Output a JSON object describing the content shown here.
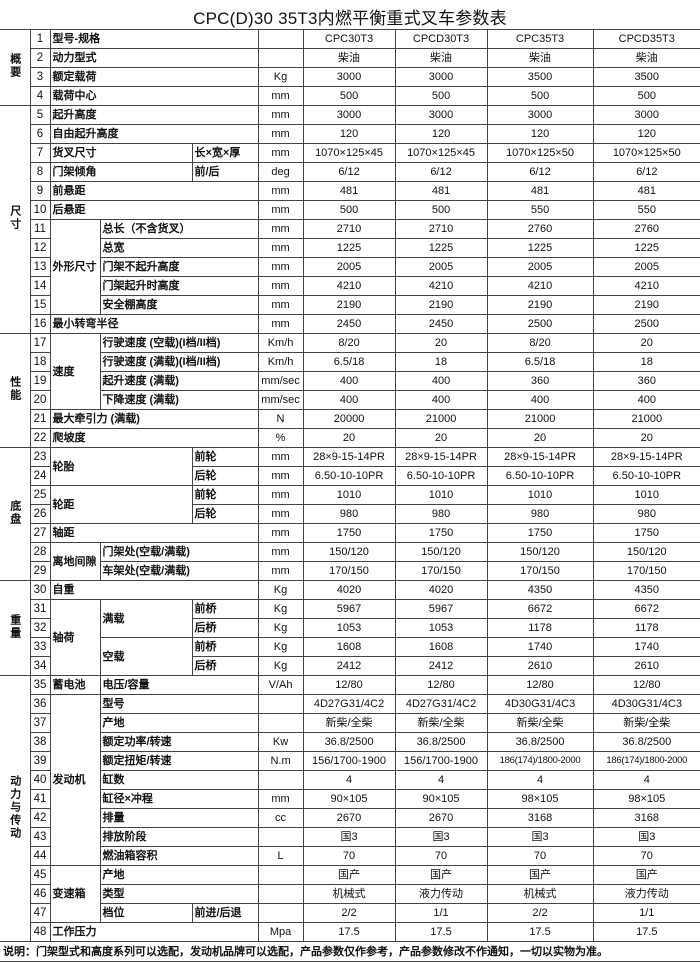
{
  "title": "CPC(D)30  35T3内燃平衡重式叉车参数表",
  "sections": [
    {
      "label": "概要",
      "from": 1,
      "to": 4
    },
    {
      "label": "尺寸",
      "from": 5,
      "to": 16
    },
    {
      "label": "性能",
      "from": 17,
      "to": 22
    },
    {
      "label": "底盘",
      "from": 23,
      "to": 29
    },
    {
      "label": "重量",
      "from": 30,
      "to": 34
    },
    {
      "label": "动力与传动",
      "from": 35,
      "to": 48
    }
  ],
  "groups_a": [
    {
      "label": "外形尺寸",
      "from": 11,
      "to": 15
    },
    {
      "label": "速度",
      "from": 17,
      "to": 20
    },
    {
      "label": "离地间隙",
      "from": 28,
      "to": 29
    },
    {
      "label": "轴荷",
      "from": 31,
      "to": 34
    },
    {
      "label": "蓄电池",
      "from": 35,
      "to": 35
    },
    {
      "label": "发动机",
      "from": 36,
      "to": 44
    },
    {
      "label": "变速箱",
      "from": 45,
      "to": 47
    }
  ],
  "groups_ab": [
    {
      "label": "轮胎",
      "from": 23,
      "to": 24
    },
    {
      "label": "轮距",
      "from": 25,
      "to": 26
    }
  ],
  "groups_b": [
    {
      "label": "满载",
      "from": 31,
      "to": 32
    },
    {
      "label": "空载",
      "from": 33,
      "to": 34
    }
  ],
  "rows": [
    {
      "n": "1",
      "label": "型号-规格",
      "unit": "",
      "values": [
        "CPC30T3",
        "CPCD30T3",
        "CPC35T3",
        "CPCD35T3"
      ]
    },
    {
      "n": "2",
      "label": "动力型式",
      "unit": "",
      "values": [
        "柴油",
        "柴油",
        "柴油",
        "柴油"
      ]
    },
    {
      "n": "3",
      "label": "额定载荷",
      "unit": "Kg",
      "values": [
        "3000",
        "3000",
        "3500",
        "3500"
      ]
    },
    {
      "n": "4",
      "label": "载荷中心",
      "unit": "mm",
      "values": [
        "500",
        "500",
        "500",
        "500"
      ]
    },
    {
      "n": "5",
      "label": "起升高度",
      "unit": "mm",
      "values": [
        "3000",
        "3000",
        "3000",
        "3000"
      ]
    },
    {
      "n": "6",
      "label": "自由起升高度",
      "unit": "mm",
      "values": [
        "120",
        "120",
        "120",
        "120"
      ]
    },
    {
      "n": "7",
      "label": "货叉尺寸",
      "sub": "长×宽×厚",
      "unit": "mm",
      "values": [
        "1070×125×45",
        "1070×125×45",
        "1070×125×50",
        "1070×125×50"
      ]
    },
    {
      "n": "8",
      "label": "门架倾角",
      "sub": "前/后",
      "unit": "deg",
      "values": [
        "6/12",
        "6/12",
        "6/12",
        "6/12"
      ]
    },
    {
      "n": "9",
      "label": "前悬距",
      "unit": "mm",
      "values": [
        "481",
        "481",
        "481",
        "481"
      ]
    },
    {
      "n": "10",
      "label": "后悬距",
      "unit": "mm",
      "values": [
        "500",
        "500",
        "550",
        "550"
      ]
    },
    {
      "n": "11",
      "label": "总长（不含货叉）",
      "unit": "mm",
      "values": [
        "2710",
        "2710",
        "2760",
        "2760"
      ]
    },
    {
      "n": "12",
      "label": "总宽",
      "unit": "mm",
      "values": [
        "1225",
        "1225",
        "1225",
        "1225"
      ]
    },
    {
      "n": "13",
      "label": "门架不起升高度",
      "unit": "mm",
      "values": [
        "2005",
        "2005",
        "2005",
        "2005"
      ]
    },
    {
      "n": "14",
      "label": "门架起升时高度",
      "unit": "mm",
      "values": [
        "4210",
        "4210",
        "4210",
        "4210"
      ]
    },
    {
      "n": "15",
      "label": "安全棚高度",
      "unit": "mm",
      "values": [
        "2190",
        "2190",
        "2190",
        "2190"
      ]
    },
    {
      "n": "16",
      "label": "最小转弯半径",
      "unit": "mm",
      "values": [
        "2450",
        "2450",
        "2500",
        "2500"
      ]
    },
    {
      "n": "17",
      "label": "行驶速度 (空载)(I档/II档)",
      "unit": "Km/h",
      "values": [
        "8/20",
        "20",
        "8/20",
        "20"
      ]
    },
    {
      "n": "18",
      "label": "行驶速度 (满载)(I档/II档)",
      "unit": "Km/h",
      "values": [
        "6.5/18",
        "18",
        "6.5/18",
        "18"
      ]
    },
    {
      "n": "19",
      "label": "起升速度  (满载)",
      "unit": "mm/sec",
      "values": [
        "400",
        "400",
        "360",
        "360"
      ]
    },
    {
      "n": "20",
      "label": "下降速度 (满载)",
      "unit": "mm/sec",
      "values": [
        "400",
        "400",
        "400",
        "400"
      ]
    },
    {
      "n": "21",
      "label": " 最大牵引力 (满载)",
      "unit": "N",
      "values": [
        "20000",
        "21000",
        "21000",
        "21000"
      ]
    },
    {
      "n": "22",
      "label": "爬坡度",
      "unit": "%",
      "values": [
        "20",
        "20",
        "20",
        "20"
      ]
    },
    {
      "n": "23",
      "sub": "前轮",
      "unit": "mm",
      "values": [
        "28×9-15-14PR",
        "28×9-15-14PR",
        "28×9-15-14PR",
        "28×9-15-14PR"
      ]
    },
    {
      "n": "24",
      "sub": "后轮",
      "unit": "mm",
      "values": [
        "6.50-10-10PR",
        "6.50-10-10PR",
        "6.50-10-10PR",
        "6.50-10-10PR"
      ]
    },
    {
      "n": "25",
      "sub": "前轮",
      "unit": "mm",
      "values": [
        "1010",
        "1010",
        "1010",
        "1010"
      ]
    },
    {
      "n": "26",
      "sub": "后轮",
      "unit": "mm",
      "values": [
        "980",
        "980",
        "980",
        "980"
      ]
    },
    {
      "n": "27",
      "label": " 轴距",
      "unit": "mm",
      "values": [
        "1750",
        "1750",
        "1750",
        "1750"
      ]
    },
    {
      "n": "28",
      "label": "门架处(空载/满载)",
      "unit": "mm",
      "values": [
        "150/120",
        "150/120",
        "150/120",
        "150/120"
      ]
    },
    {
      "n": "29",
      "label": "车架处(空载/满载)",
      "unit": "mm",
      "values": [
        "170/150",
        "170/150",
        "170/150",
        "170/150"
      ]
    },
    {
      "n": "30",
      "label": "自重",
      "unit": "Kg",
      "values": [
        "4020",
        "4020",
        "4350",
        "4350"
      ]
    },
    {
      "n": "31",
      "sub": "前桥",
      "unit": "Kg",
      "values": [
        "5967",
        "5967",
        "6672",
        "6672"
      ]
    },
    {
      "n": "32",
      "sub": "后桥",
      "unit": "Kg",
      "values": [
        "1053",
        "1053",
        "1178",
        "1178"
      ]
    },
    {
      "n": "33",
      "sub": "前桥",
      "unit": "Kg",
      "values": [
        "1608",
        "1608",
        "1740",
        "1740"
      ]
    },
    {
      "n": "34",
      "sub": "后桥",
      "unit": "Kg",
      "values": [
        "2412",
        "2412",
        "2610",
        "2610"
      ]
    },
    {
      "n": "35",
      "label": "电压/容量",
      "unit": "V/Ah",
      "values": [
        "12/80",
        "12/80",
        "12/80",
        "12/80"
      ]
    },
    {
      "n": "36",
      "label": "型号",
      "unit": "",
      "values": [
        "4D27G31/4C2",
        "4D27G31/4C2",
        "4D30G31/4C3",
        "4D30G31/4C3"
      ]
    },
    {
      "n": "37",
      "label": "产地",
      "unit": "",
      "values": [
        "新柴/全柴",
        "新柴/全柴",
        "新柴/全柴",
        "新柴/全柴"
      ]
    },
    {
      "n": "38",
      "label": "额定功率/转速",
      "unit": "Kw",
      "values": [
        "36.8/2500",
        "36.8/2500",
        "36.8/2500",
        "36.8/2500"
      ]
    },
    {
      "n": "39",
      "label": "额定扭矩/转速",
      "unit": "N.m",
      "values": [
        "156/1700-1900",
        "156/1700-1900",
        "186(174)/1800-2000",
        "186(174)/1800-2000"
      ]
    },
    {
      "n": "40",
      "label": "缸数",
      "unit": "",
      "values": [
        "4",
        "4",
        "4",
        "4"
      ]
    },
    {
      "n": "41",
      "label": "缸径×冲程",
      "unit": "mm",
      "values": [
        "90×105",
        "90×105",
        "98×105",
        "98×105"
      ]
    },
    {
      "n": "42",
      "label": "排量",
      "unit": "cc",
      "values": [
        "2670",
        "2670",
        "3168",
        "3168"
      ]
    },
    {
      "n": "43",
      "label": "排放阶段",
      "unit": "",
      "values": [
        "国3",
        "国3",
        "国3",
        "国3"
      ]
    },
    {
      "n": "44",
      "label": "燃油箱容积",
      "unit": "L",
      "values": [
        "70",
        "70",
        "70",
        "70"
      ]
    },
    {
      "n": "45",
      "label": "产地",
      "unit": "",
      "values": [
        "国产",
        "国产",
        "国产",
        "国产"
      ]
    },
    {
      "n": "46",
      "label": "类型",
      "unit": "",
      "values": [
        "机械式",
        "液力传动",
        "机械式",
        "液力传动"
      ]
    },
    {
      "n": "47",
      "label": "档位",
      "sub": "前进/后退",
      "unit": "",
      "values": [
        "2/2",
        "1/1",
        "2/2",
        "1/1"
      ]
    },
    {
      "n": "48",
      "label": "工作压力",
      "unit": "Mpa",
      "values": [
        "17.5",
        "17.5",
        "17.5",
        "17.5"
      ]
    }
  ],
  "footer": "说明：门架型式和高度系列可以选配，发动机品牌可以选配，产品参数仅作参考，产品参数修改不作通知，一切以实物为准。"
}
